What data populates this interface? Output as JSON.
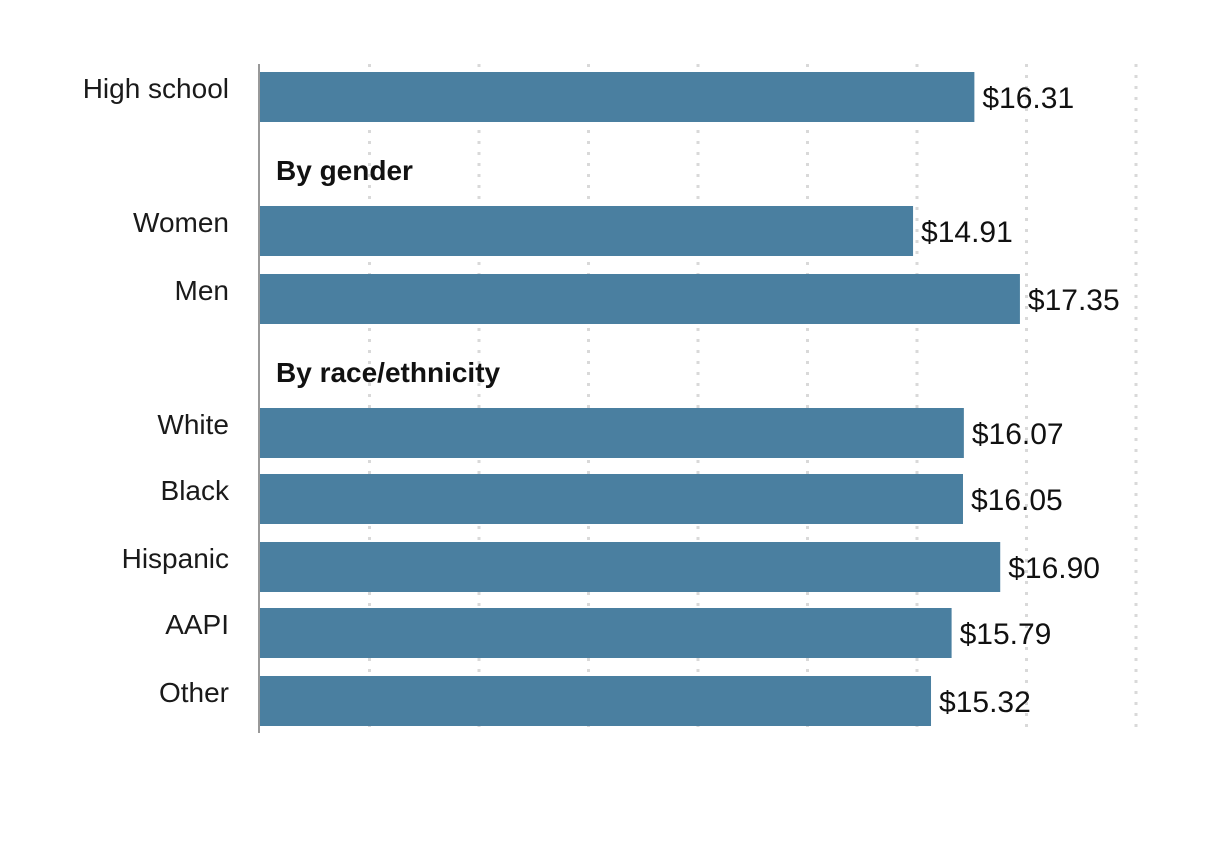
{
  "chart_data": {
    "type": "bar",
    "orientation": "horizontal",
    "bar_color": "#4a7fa0",
    "xlim": [
      0,
      20
    ],
    "grid": "vertical dotted",
    "rows": [
      {
        "kind": "bar",
        "label": "High school",
        "value": 16.31,
        "value_label": "$16.31"
      },
      {
        "kind": "heading",
        "label": "By gender"
      },
      {
        "kind": "bar",
        "label": "Women",
        "value": 14.91,
        "value_label": "$14.91"
      },
      {
        "kind": "bar",
        "label": "Men",
        "value": 17.35,
        "value_label": "$17.35"
      },
      {
        "kind": "heading",
        "label": "By race/ethnicity"
      },
      {
        "kind": "bar",
        "label": "White",
        "value": 16.07,
        "value_label": "$16.07"
      },
      {
        "kind": "bar",
        "label": "Black",
        "value": 16.05,
        "value_label": "$16.05"
      },
      {
        "kind": "bar",
        "label": "Hispanic",
        "value": 16.9,
        "value_label": "$16.90"
      },
      {
        "kind": "bar",
        "label": "AAPI",
        "value": 15.79,
        "value_label": "$15.79"
      },
      {
        "kind": "bar",
        "label": "Other",
        "value": 15.32,
        "value_label": "$15.32"
      }
    ]
  }
}
